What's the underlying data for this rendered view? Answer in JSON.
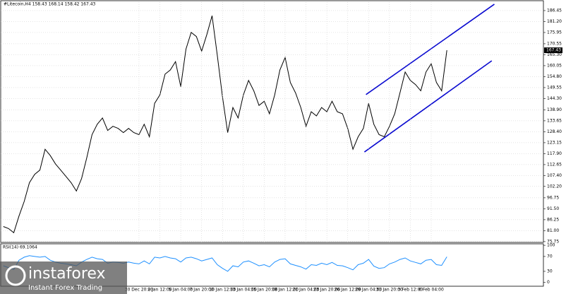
{
  "chart_data": [
    {
      "type": "line",
      "title": "#Litecoin,H4 158.43 168.14 158.42 167.43",
      "categories": [
        null,
        null,
        null,
        null,
        null,
        null,
        null,
        null,
        null,
        null,
        null,
        null,
        null,
        null,
        null,
        null,
        null,
        null,
        null,
        null,
        null,
        null,
        null,
        null,
        null,
        null,
        "30 Dec 20:00",
        null,
        null,
        null,
        "2 Jan 12:00",
        null,
        null,
        null,
        "5 Jan 04:00",
        null,
        null,
        null,
        "7 Jan 20:00",
        null,
        null,
        null,
        "10 Jan 12:00",
        null,
        null,
        null,
        "13 Jan 04:00",
        null,
        null,
        null,
        "15 Jan 20:00",
        null,
        null,
        null,
        "18 Jan 12:00",
        null,
        null,
        null,
        "21 Jan 04:00",
        null,
        null,
        null,
        "23 Jan 20:00",
        null,
        null,
        null,
        "26 Jan 12:00",
        null,
        null,
        null,
        "29 Jan 04:00",
        null,
        null,
        null,
        "31 Jan 20:00",
        null,
        null,
        null,
        "3 Feb 12:00",
        null,
        null,
        null,
        "6 Feb 04:00",
        null,
        null,
        null,
        null,
        null,
        null,
        null,
        null,
        null,
        null,
        null,
        null,
        null,
        null,
        null,
        null,
        null,
        null,
        null,
        null,
        null
      ],
      "series": [
        {
          "color": "#000000",
          "values": [
            83,
            82,
            80,
            88,
            95,
            104,
            108,
            110,
            120,
            117,
            113,
            110,
            107,
            104,
            100,
            106,
            116,
            127,
            132,
            135,
            129,
            131,
            130,
            128,
            130,
            128,
            127,
            132,
            126,
            142,
            146,
            156,
            158,
            162,
            150,
            168,
            176,
            174,
            167,
            175,
            184,
            165,
            145,
            128,
            140,
            135,
            146,
            153,
            148,
            141,
            143,
            137,
            146,
            158,
            164,
            152,
            147,
            140,
            131,
            138,
            136,
            140,
            138,
            143,
            138,
            137,
            130,
            120,
            126,
            130,
            142,
            132,
            127,
            126,
            131,
            137,
            147,
            157,
            153,
            151,
            148,
            157,
            161,
            152,
            148,
            167.43,
            null,
            null,
            null,
            null,
            null,
            null,
            null,
            null,
            null,
            null,
            null,
            null,
            null,
            null,
            null,
            null,
            null,
            null
          ]
        }
      ],
      "ylim": [
        74.7,
        190.5
      ],
      "yticks": [
        75.75,
        {
          "value": 81,
          "label": "81.00"
        },
        86.25,
        {
          "value": 91.5,
          "label": "91.50"
        },
        96.75,
        {
          "value": 102.2,
          "label": "102.20"
        },
        {
          "value": 107.4,
          "label": "107.40"
        },
        112.65,
        {
          "value": 117.9,
          "label": "117.90"
        },
        123.15,
        {
          "value": 128.4,
          "label": "128.40"
        },
        133.65,
        {
          "value": 138.9,
          "label": "138.90"
        },
        {
          "value": 144.3,
          "label": "144.30"
        },
        149.55,
        {
          "value": 154.8,
          "label": "154.80"
        },
        160.05,
        {
          "value": 165.3,
          "label": "165.30"
        },
        170.55,
        175.95,
        {
          "value": 181.2,
          "label": "181.20"
        },
        186.45
      ],
      "grid": true,
      "lines": [
        {
          "color": "#0a0ad0",
          "start": [
            69.5,
            146.2
          ],
          "end": [
            94.1,
            189.5
          ]
        },
        {
          "color": "#0a0ad0",
          "start": [
            69.2,
            118.7
          ],
          "end": [
            93.6,
            162.4
          ]
        }
      ]
    },
    {
      "type": "line",
      "title": "RSI(14) 69.1064",
      "series": [
        {
          "color": "#1e90ff",
          "values": [
            45,
            40,
            35,
            60,
            68,
            72,
            70,
            68,
            70,
            60,
            55,
            52,
            50,
            48,
            45,
            55,
            62,
            68,
            64,
            62,
            52,
            55,
            54,
            52,
            55,
            52,
            50,
            58,
            50,
            68,
            66,
            70,
            66,
            64,
            55,
            66,
            68,
            64,
            58,
            62,
            66,
            48,
            38,
            30,
            45,
            42,
            55,
            58,
            52,
            45,
            48,
            42,
            55,
            62,
            64,
            50,
            46,
            42,
            36,
            48,
            46,
            52,
            48,
            54,
            46,
            45,
            40,
            34,
            48,
            52,
            62,
            44,
            38,
            40,
            50,
            55,
            62,
            66,
            58,
            54,
            50,
            60,
            62,
            48,
            46,
            69.1,
            null,
            null,
            null,
            null,
            null,
            null,
            null,
            null,
            null,
            null,
            null,
            null,
            null,
            null,
            null,
            null,
            null,
            null
          ]
        }
      ],
      "ylim": [
        -10,
        104
      ],
      "yticks": [
        0,
        30,
        70,
        100
      ]
    }
  ],
  "watermark": {
    "brand": "instaforex",
    "tagline": "Instant Forex Trading"
  }
}
